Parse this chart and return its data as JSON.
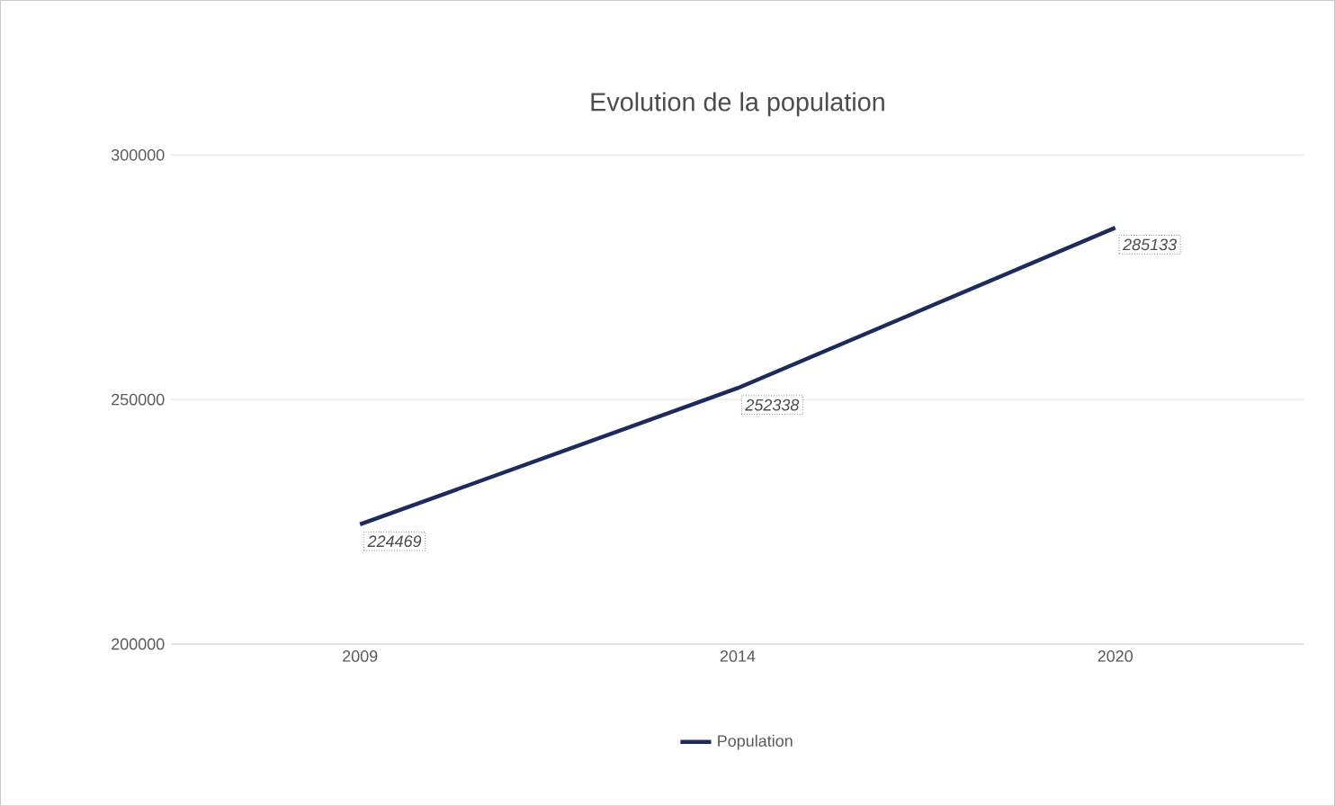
{
  "chart_data": {
    "type": "line",
    "title": "Evolution de la population",
    "categories": [
      "2009",
      "2014",
      "2020"
    ],
    "series": [
      {
        "name": "Population",
        "color": "#1f2a5c",
        "values": [
          224469,
          252338,
          285133
        ]
      }
    ],
    "ylim": [
      200000,
      300000
    ],
    "yticks": [
      200000,
      250000,
      300000
    ],
    "grid": "y",
    "legend": "bottom",
    "data_labels": true,
    "marker": "none",
    "line_style": "solid"
  }
}
